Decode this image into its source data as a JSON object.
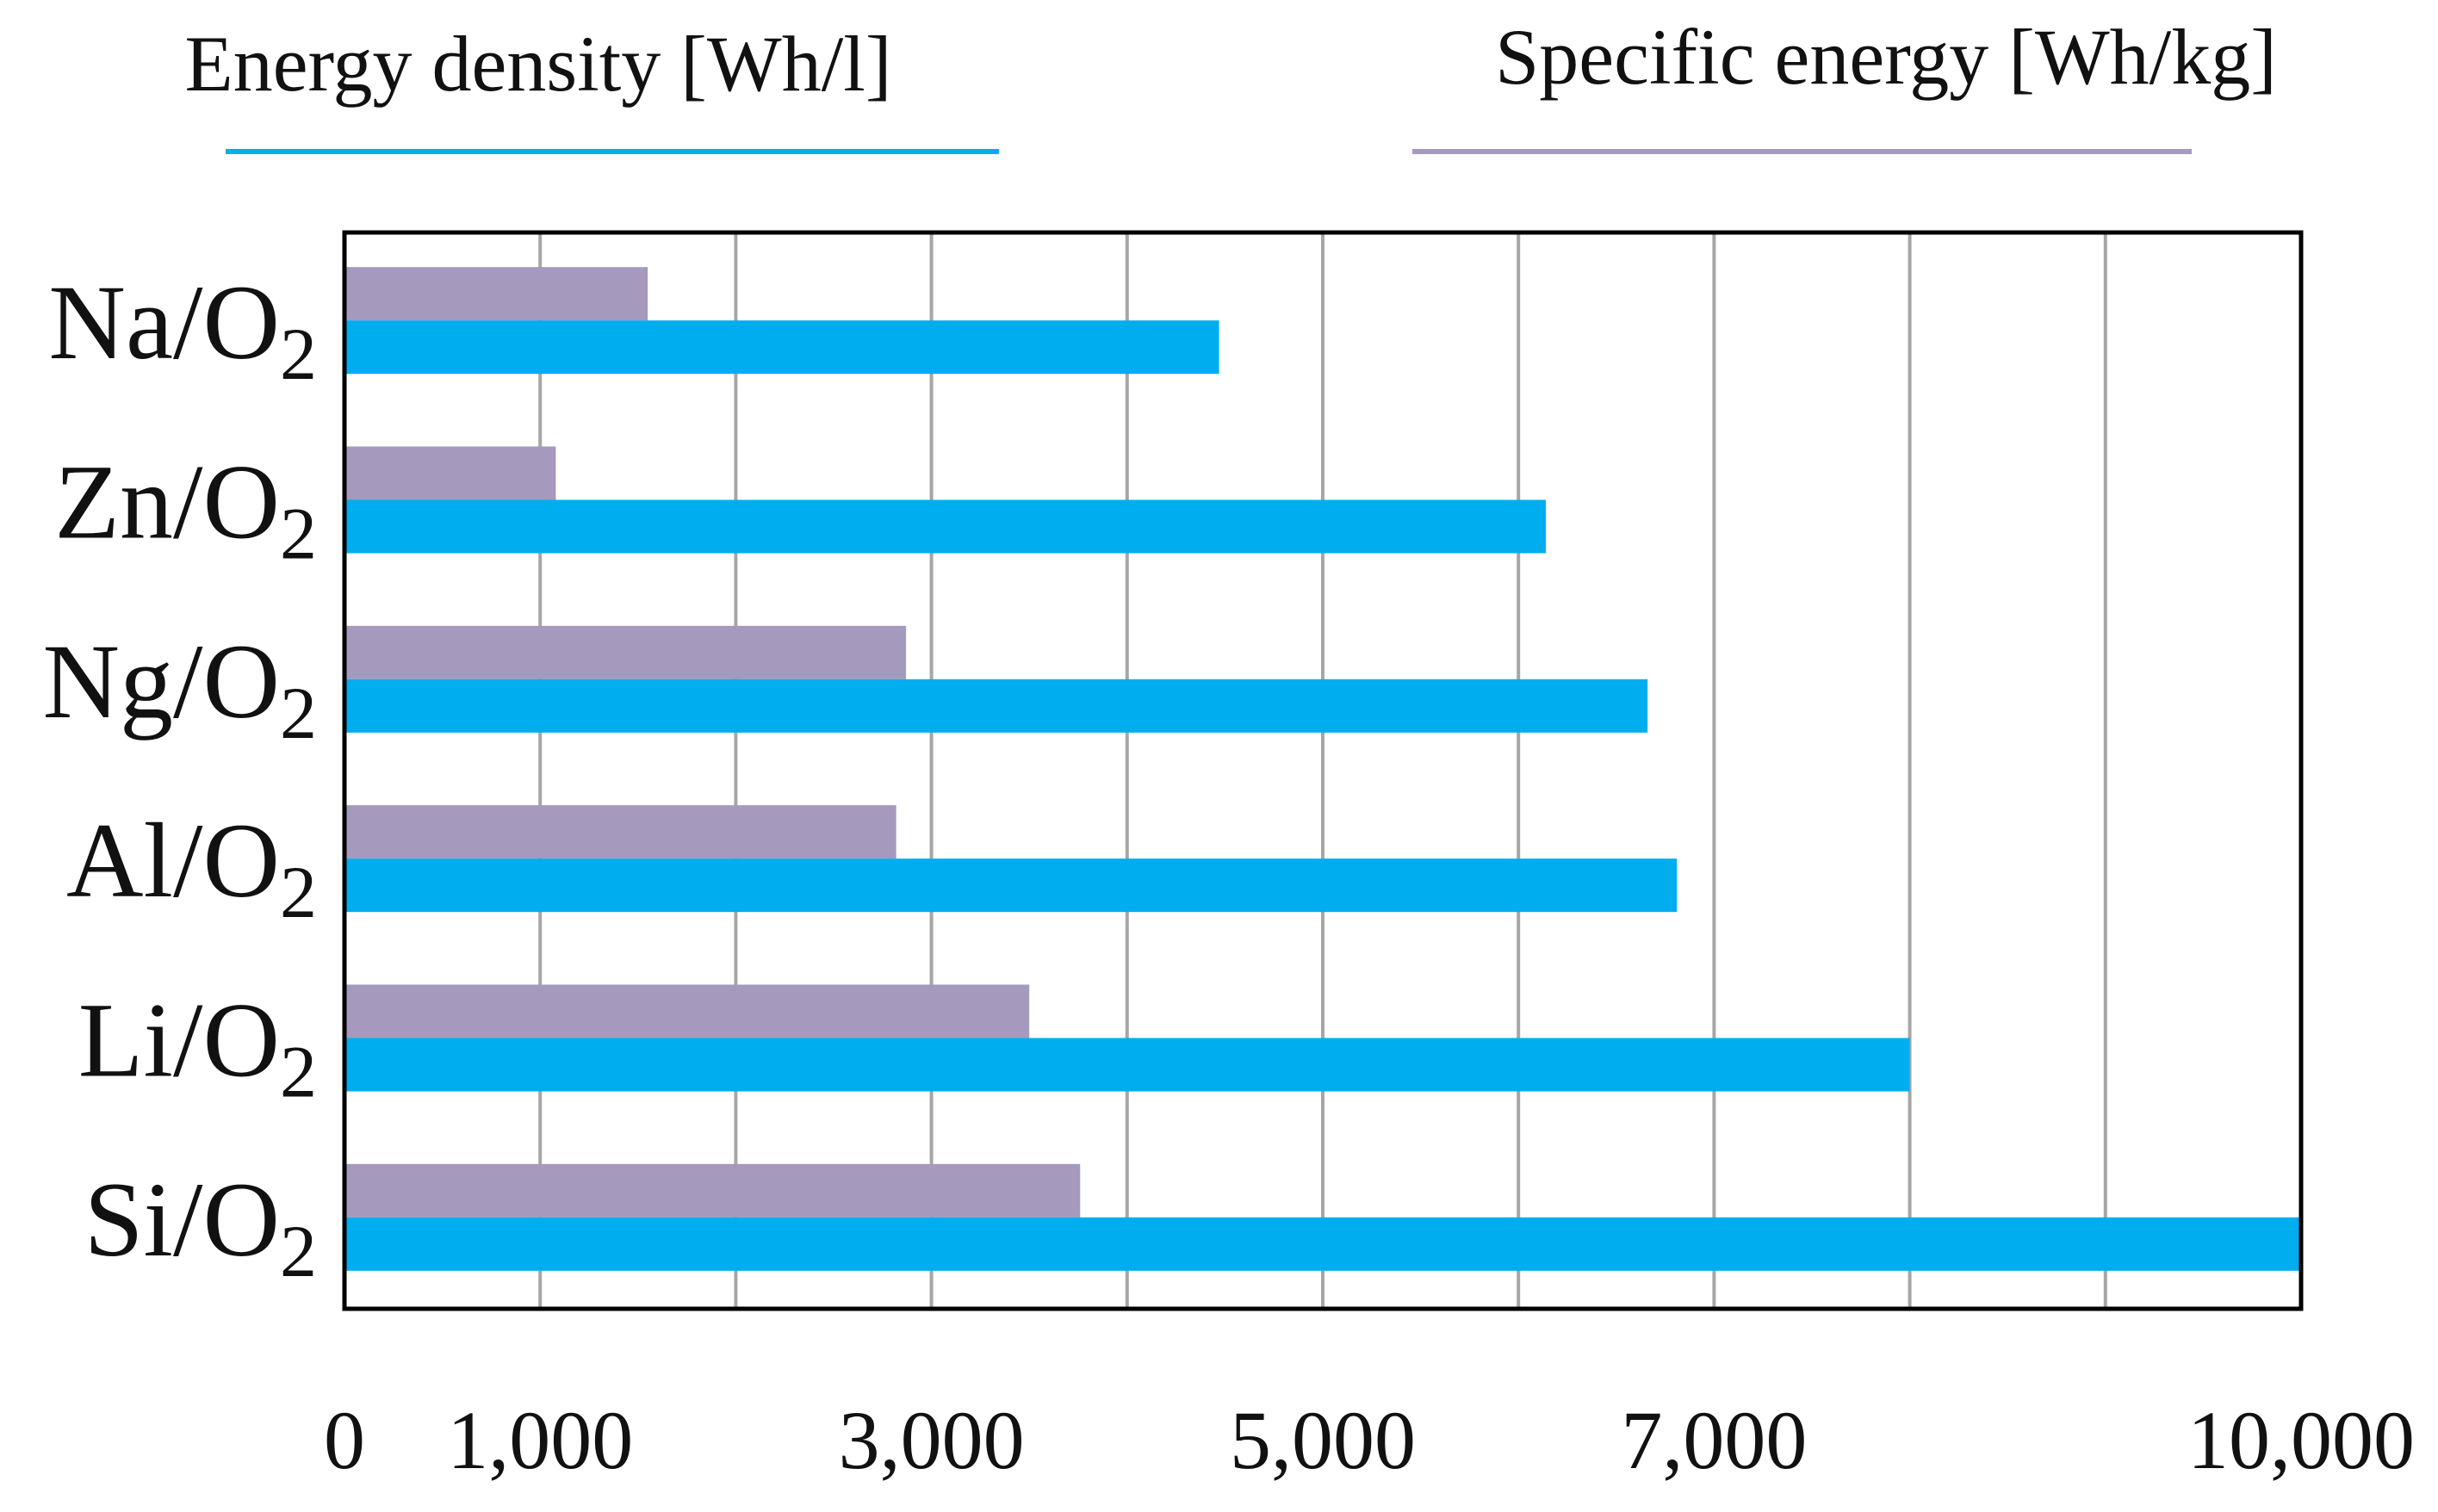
{
  "colors": {
    "energy_density": "#00AEEF",
    "specific_energy": "#A699BE",
    "grid": "#A6A6A6",
    "frame": "#000000"
  },
  "chart_data": {
    "type": "bar",
    "orientation": "horizontal",
    "title": "",
    "xlabel": "",
    "ylabel": "",
    "xlim": [
      0,
      10000
    ],
    "grid": true,
    "legend_position": "top",
    "categories": [
      {
        "base": "Na/O",
        "sub": "2"
      },
      {
        "base": "Zn/O",
        "sub": "2"
      },
      {
        "base": "Ng/O",
        "sub": "2"
      },
      {
        "base": "Al/O",
        "sub": "2"
      },
      {
        "base": "Li/O",
        "sub": "2"
      },
      {
        "base": "Si/O",
        "sub": "2"
      }
    ],
    "series": [
      {
        "name": "Specific energy [Wh/kg]",
        "color_key": "specific_energy",
        "values": [
          1550,
          1080,
          2870,
          2820,
          3500,
          3760
        ]
      },
      {
        "name": "Energy density [Wh/l]",
        "color_key": "energy_density",
        "values": [
          4470,
          6140,
          6660,
          6810,
          8000,
          10000
        ]
      }
    ],
    "legend": [
      {
        "label": "Energy density [Wh/l]",
        "color_key": "energy_density"
      },
      {
        "label": "Specific energy [Wh/kg]",
        "color_key": "specific_energy"
      }
    ],
    "gridlines": [
      0,
      1000,
      2000,
      3000,
      4000,
      5000,
      6000,
      7000,
      8000,
      9000,
      10000
    ],
    "tick_labels": [
      {
        "value": 0,
        "label": "0"
      },
      {
        "value": 1000,
        "label": "1,000"
      },
      {
        "value": 3000,
        "label": "3,000"
      },
      {
        "value": 5000,
        "label": "5,000"
      },
      {
        "value": 7000,
        "label": "7,000"
      },
      {
        "value": 10000,
        "label": "10,000"
      }
    ]
  }
}
